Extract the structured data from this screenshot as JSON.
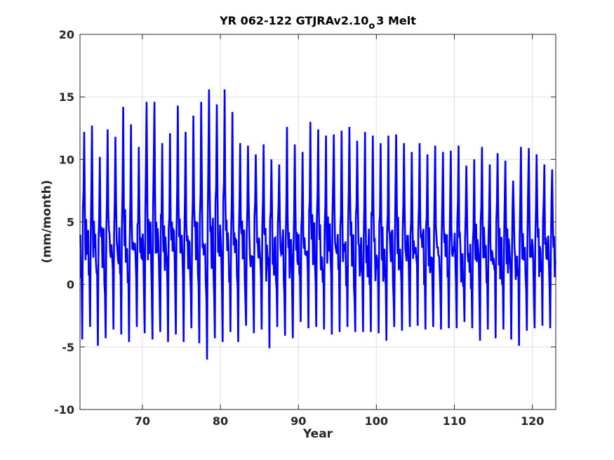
{
  "chart_data": {
    "type": "line",
    "title": {
      "main": "YR 062-122 GTJRAv2.10",
      "subscript": "o",
      "rest": "3 Melt"
    },
    "xlabel": "Year",
    "ylabel": "(mm/month)",
    "xlim": [
      62,
      123
    ],
    "ylim": [
      -10,
      20
    ],
    "xticks": [
      70,
      80,
      90,
      100,
      110,
      120
    ],
    "yticks": [
      -10,
      -5,
      0,
      5,
      10,
      15,
      20
    ],
    "grid": true,
    "line_color": "#0000ff",
    "series_style": "monthly seasonal cycle with one peak per year",
    "series": [
      {
        "annual_peaks": [
          {
            "year": 62.5,
            "peak": 12.2
          },
          {
            "year": 63.5,
            "peak": 12.7
          },
          {
            "year": 64.5,
            "peak": 10.2
          },
          {
            "year": 65.5,
            "peak": 12.4
          },
          {
            "year": 66.5,
            "peak": 11.8
          },
          {
            "year": 67.5,
            "peak": 14.2
          },
          {
            "year": 68.5,
            "peak": 12.8
          },
          {
            "year": 69.5,
            "peak": 11.0
          },
          {
            "year": 70.5,
            "peak": 14.6
          },
          {
            "year": 71.5,
            "peak": 14.6
          },
          {
            "year": 72.5,
            "peak": 11.3
          },
          {
            "year": 73.5,
            "peak": 12.1
          },
          {
            "year": 74.5,
            "peak": 14.3
          },
          {
            "year": 75.5,
            "peak": 12.2
          },
          {
            "year": 76.5,
            "peak": 13.5
          },
          {
            "year": 77.5,
            "peak": 14.6
          },
          {
            "year": 78.5,
            "peak": 15.6
          },
          {
            "year": 79.5,
            "peak": 14.4
          },
          {
            "year": 80.5,
            "peak": 15.6
          },
          {
            "year": 81.5,
            "peak": 13.8
          },
          {
            "year": 82.5,
            "peak": 11.3
          },
          {
            "year": 83.5,
            "peak": 11.1
          },
          {
            "year": 84.5,
            "peak": 10.4
          },
          {
            "year": 85.5,
            "peak": 11.2
          },
          {
            "year": 86.5,
            "peak": 10.0
          },
          {
            "year": 87.5,
            "peak": 9.6
          },
          {
            "year": 88.5,
            "peak": 12.6
          },
          {
            "year": 89.5,
            "peak": 11.2
          },
          {
            "year": 90.5,
            "peak": 10.6
          },
          {
            "year": 91.5,
            "peak": 13.0
          },
          {
            "year": 92.5,
            "peak": 12.4
          },
          {
            "year": 93.5,
            "peak": 11.9
          },
          {
            "year": 94.5,
            "peak": 12.0
          },
          {
            "year": 95.5,
            "peak": 12.3
          },
          {
            "year": 96.5,
            "peak": 12.6
          },
          {
            "year": 97.5,
            "peak": 11.5
          },
          {
            "year": 98.5,
            "peak": 12.2
          },
          {
            "year": 99.5,
            "peak": 11.9
          },
          {
            "year": 100.5,
            "peak": 11.3
          },
          {
            "year": 101.5,
            "peak": 11.9
          },
          {
            "year": 102.5,
            "peak": 12.0
          },
          {
            "year": 103.5,
            "peak": 11.3
          },
          {
            "year": 104.5,
            "peak": 10.6
          },
          {
            "year": 105.5,
            "peak": 11.3
          },
          {
            "year": 106.5,
            "peak": 10.4
          },
          {
            "year": 107.5,
            "peak": 11.1
          },
          {
            "year": 108.5,
            "peak": 10.6
          },
          {
            "year": 109.5,
            "peak": 10.7
          },
          {
            "year": 110.5,
            "peak": 11.1
          },
          {
            "year": 111.5,
            "peak": 9.5
          },
          {
            "year": 112.5,
            "peak": 10.0
          },
          {
            "year": 113.5,
            "peak": 11.0
          },
          {
            "year": 114.5,
            "peak": 9.6
          },
          {
            "year": 115.5,
            "peak": 10.5
          },
          {
            "year": 116.5,
            "peak": 9.9
          },
          {
            "year": 117.5,
            "peak": 8.3
          },
          {
            "year": 118.5,
            "peak": 11.0
          },
          {
            "year": 119.5,
            "peak": 10.9
          },
          {
            "year": 120.5,
            "peak": 10.4
          },
          {
            "year": 121.5,
            "peak": 9.6
          },
          {
            "year": 122.5,
            "peak": 9.2
          }
        ],
        "annual_troughs": [
          {
            "year": 62.3,
            "trough": -4.4
          },
          {
            "year": 63.3,
            "trough": -3.4
          },
          {
            "year": 64.3,
            "trough": -4.9
          },
          {
            "year": 65.3,
            "trough": -4.3
          },
          {
            "year": 66.3,
            "trough": -3.6
          },
          {
            "year": 67.3,
            "trough": -4.0
          },
          {
            "year": 68.3,
            "trough": -4.6
          },
          {
            "year": 69.3,
            "trough": -3.4
          },
          {
            "year": 70.3,
            "trough": -3.9
          },
          {
            "year": 71.3,
            "trough": -4.4
          },
          {
            "year": 72.3,
            "trough": -3.8
          },
          {
            "year": 73.3,
            "trough": -4.6
          },
          {
            "year": 74.3,
            "trough": -4.0
          },
          {
            "year": 75.3,
            "trough": -4.6
          },
          {
            "year": 76.3,
            "trough": -3.5
          },
          {
            "year": 77.3,
            "trough": -4.7
          },
          {
            "year": 78.3,
            "trough": -6.0
          },
          {
            "year": 79.3,
            "trough": -4.3
          },
          {
            "year": 80.3,
            "trough": -4.6
          },
          {
            "year": 81.3,
            "trough": -3.8
          },
          {
            "year": 82.3,
            "trough": -4.6
          },
          {
            "year": 83.3,
            "trough": -3.3
          },
          {
            "year": 84.3,
            "trough": -3.9
          },
          {
            "year": 85.3,
            "trough": -3.6
          },
          {
            "year": 86.3,
            "trough": -5.1
          },
          {
            "year": 87.3,
            "trough": -3.4
          },
          {
            "year": 88.3,
            "trough": -4.1
          },
          {
            "year": 89.3,
            "trough": -4.3
          },
          {
            "year": 90.3,
            "trough": -3.0
          },
          {
            "year": 91.3,
            "trough": -3.5
          },
          {
            "year": 92.3,
            "trough": -3.4
          },
          {
            "year": 93.3,
            "trough": -3.6
          },
          {
            "year": 94.3,
            "trough": -4.0
          },
          {
            "year": 95.3,
            "trough": -3.8
          },
          {
            "year": 96.3,
            "trough": -3.4
          },
          {
            "year": 97.3,
            "trough": -3.8
          },
          {
            "year": 98.3,
            "trough": -3.8
          },
          {
            "year": 99.3,
            "trough": -3.8
          },
          {
            "year": 100.3,
            "trough": -3.9
          },
          {
            "year": 101.3,
            "trough": -4.5
          },
          {
            "year": 102.3,
            "trough": -3.4
          },
          {
            "year": 103.3,
            "trough": -3.7
          },
          {
            "year": 104.3,
            "trough": -3.4
          },
          {
            "year": 105.3,
            "trough": -3.3
          },
          {
            "year": 106.3,
            "trough": -3.6
          },
          {
            "year": 107.3,
            "trough": -3.4
          },
          {
            "year": 108.3,
            "trough": -3.6
          },
          {
            "year": 109.3,
            "trough": -3.5
          },
          {
            "year": 110.3,
            "trough": -3.5
          },
          {
            "year": 111.3,
            "trough": -3.0
          },
          {
            "year": 112.3,
            "trough": -3.5
          },
          {
            "year": 113.3,
            "trough": -4.5
          },
          {
            "year": 114.3,
            "trough": -3.6
          },
          {
            "year": 115.3,
            "trough": -4.3
          },
          {
            "year": 116.3,
            "trough": -3.6
          },
          {
            "year": 117.3,
            "trough": -4.4
          },
          {
            "year": 118.3,
            "trough": -4.9
          },
          {
            "year": 119.3,
            "trough": -3.7
          },
          {
            "year": 120.3,
            "trough": -3.5
          },
          {
            "year": 121.3,
            "trough": -3.3
          },
          {
            "year": 122.3,
            "trough": -3.5
          }
        ]
      }
    ]
  }
}
